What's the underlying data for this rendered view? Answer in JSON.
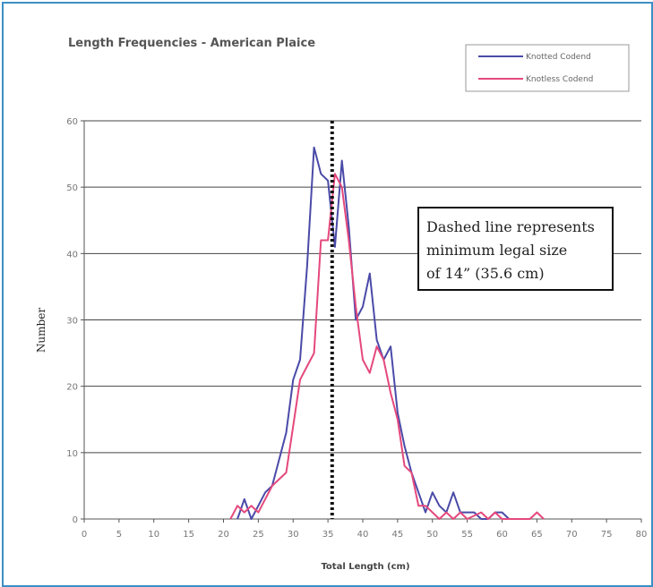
{
  "colors": {
    "frame": "#3d8fc4",
    "knotted": "#4a4aa8",
    "knotless": "#e5487c",
    "dashed_line": "#111111",
    "grid": "#444444"
  },
  "chart_data": {
    "type": "line",
    "title": "Length Frequencies - American Plaice",
    "xlabel": "Total Length (cm)",
    "ylabel": "Number",
    "xlim": [
      0,
      80
    ],
    "ylim": [
      0,
      60
    ],
    "xticks": [
      0,
      5,
      10,
      15,
      20,
      25,
      30,
      35,
      40,
      45,
      50,
      55,
      60,
      65,
      70,
      75,
      80
    ],
    "yticks": [
      0,
      10,
      20,
      30,
      40,
      50,
      60
    ],
    "grid": "horizontal",
    "legend_position": "top-right",
    "series": [
      {
        "name": "Knotted Codend",
        "color": "#4a4aa8",
        "points": [
          [
            22,
            0
          ],
          [
            23,
            3
          ],
          [
            24,
            0
          ],
          [
            25,
            2
          ],
          [
            26,
            4
          ],
          [
            27,
            5
          ],
          [
            28,
            9
          ],
          [
            29,
            13
          ],
          [
            30,
            21
          ],
          [
            31,
            24
          ],
          [
            32,
            38
          ],
          [
            33,
            56
          ],
          [
            34,
            52
          ],
          [
            35,
            51
          ],
          [
            36,
            41
          ],
          [
            37,
            54
          ],
          [
            38,
            44
          ],
          [
            39,
            30
          ],
          [
            40,
            32
          ],
          [
            41,
            37
          ],
          [
            42,
            27
          ],
          [
            43,
            24
          ],
          [
            44,
            26
          ],
          [
            45,
            16
          ],
          [
            46,
            11
          ],
          [
            47,
            7
          ],
          [
            48,
            4
          ],
          [
            49,
            1
          ],
          [
            50,
            4
          ],
          [
            51,
            2
          ],
          [
            52,
            1
          ],
          [
            53,
            4
          ],
          [
            54,
            1
          ],
          [
            55,
            1
          ],
          [
            56,
            1
          ],
          [
            57,
            0
          ],
          [
            58,
            0
          ],
          [
            59,
            1
          ],
          [
            60,
            1
          ],
          [
            61,
            0
          ]
        ]
      },
      {
        "name": "Knotless Codend",
        "color": "#e5487c",
        "points": [
          [
            21,
            0
          ],
          [
            22,
            2
          ],
          [
            23,
            1
          ],
          [
            24,
            2
          ],
          [
            25,
            1
          ],
          [
            26,
            3
          ],
          [
            27,
            5
          ],
          [
            28,
            6
          ],
          [
            29,
            7
          ],
          [
            30,
            14
          ],
          [
            31,
            21
          ],
          [
            32,
            23
          ],
          [
            33,
            25
          ],
          [
            34,
            42
          ],
          [
            35,
            42
          ],
          [
            36,
            52
          ],
          [
            37,
            50
          ],
          [
            38,
            42
          ],
          [
            39,
            32
          ],
          [
            40,
            24
          ],
          [
            41,
            22
          ],
          [
            42,
            26
          ],
          [
            43,
            24
          ],
          [
            44,
            19
          ],
          [
            45,
            15
          ],
          [
            46,
            8
          ],
          [
            47,
            7
          ],
          [
            48,
            2
          ],
          [
            49,
            2
          ],
          [
            50,
            1
          ],
          [
            51,
            0
          ],
          [
            52,
            1
          ],
          [
            53,
            0
          ],
          [
            54,
            1
          ],
          [
            55,
            0
          ],
          [
            57,
            1
          ],
          [
            58,
            0
          ],
          [
            59,
            1
          ],
          [
            60,
            0
          ],
          [
            64,
            0
          ],
          [
            65,
            1
          ],
          [
            66,
            0
          ]
        ]
      }
    ],
    "reference_line": {
      "x": 35.6,
      "style": "dotted"
    },
    "annotation": [
      "Dashed line represents",
      "minimum legal size",
      "of 14” (35.6 cm)"
    ]
  }
}
